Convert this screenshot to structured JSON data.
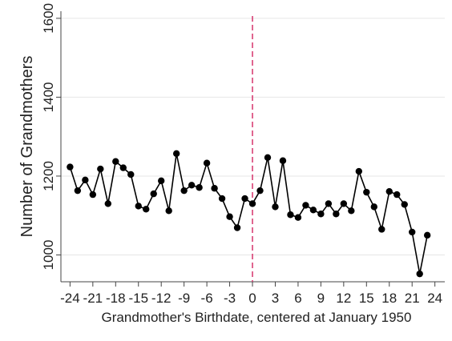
{
  "chart_data": {
    "type": "line",
    "x_label": "Grandmother's Birthdate, centered at January 1950",
    "y_label": "Number of Grandmothers",
    "x": [
      -24,
      -23,
      -22,
      -21,
      -20,
      -19,
      -18,
      -17,
      -16,
      -15,
      -14,
      -13,
      -12,
      -11,
      -10,
      -9,
      -8,
      -7,
      -6,
      -5,
      -4,
      -3,
      -2,
      -1,
      0,
      1,
      2,
      3,
      4,
      5,
      6,
      7,
      8,
      9,
      10,
      11,
      12,
      13,
      14,
      15,
      16,
      17,
      18,
      19,
      20,
      21,
      22,
      23
    ],
    "values": [
      1223,
      1163,
      1190,
      1153,
      1218,
      1130,
      1237,
      1221,
      1204,
      1124,
      1116,
      1155,
      1188,
      1112,
      1257,
      1163,
      1177,
      1171,
      1233,
      1169,
      1143,
      1097,
      1069,
      1143,
      1130,
      1163,
      1247,
      1122,
      1239,
      1102,
      1095,
      1126,
      1114,
      1104,
      1130,
      1104,
      1130,
      1112,
      1212,
      1159,
      1122,
      1065,
      1161,
      1153,
      1128,
      1058,
      952,
      1050
    ],
    "color": "#000000",
    "xlim": [
      -25.2,
      25.3
    ],
    "ylim": [
      932,
      1618
    ],
    "xticks": [
      -24,
      -21,
      -18,
      -15,
      -12,
      -9,
      -6,
      -3,
      0,
      3,
      6,
      9,
      12,
      15,
      18,
      21,
      24
    ],
    "yticks": [
      1000,
      1200,
      1400,
      1600
    ],
    "grid": true,
    "vline": 0,
    "vline_color": "#d6336c"
  }
}
